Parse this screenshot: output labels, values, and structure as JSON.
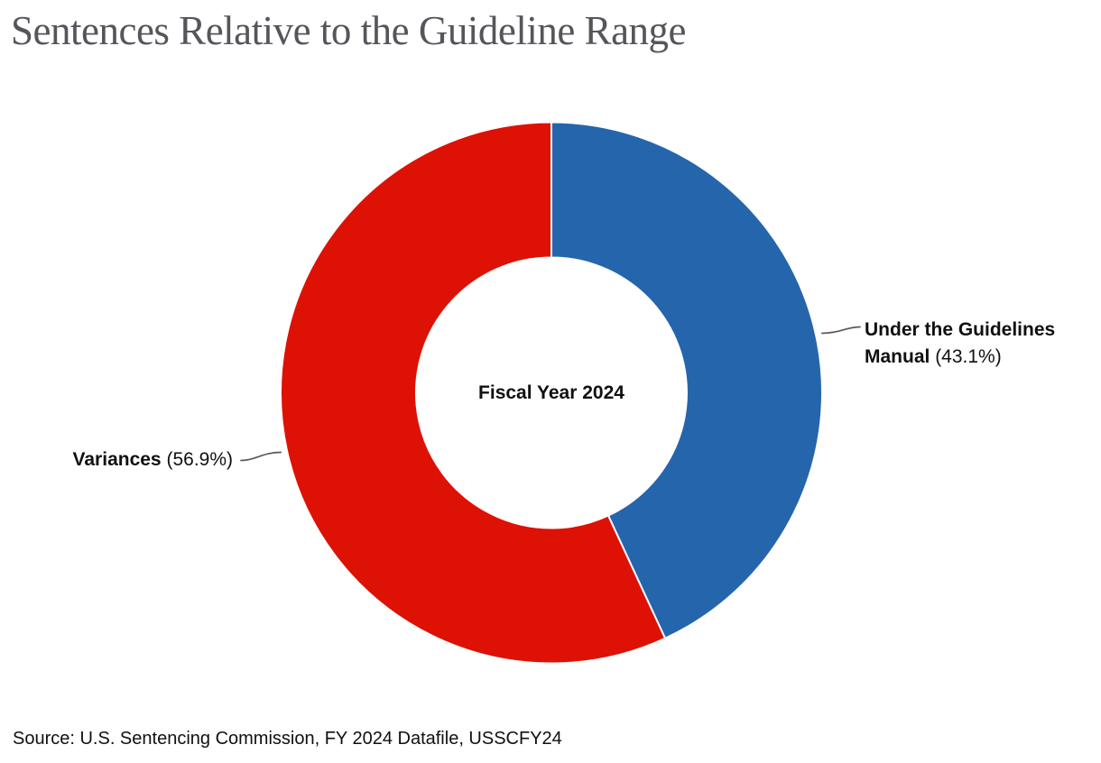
{
  "title": "Sentences Relative to the Guideline Range",
  "center_label": "Fiscal Year 2024",
  "source": "Source: U.S. Sentencing Commission, FY 2024 Datafile, USSCFY24",
  "colors": {
    "blue": "#2565ac",
    "red": "#de1105",
    "title_gray": "#55565b",
    "leader_gray": "#595a5c",
    "text_black": "#101010",
    "slice_separator": "#ffffff"
  },
  "chart_data": {
    "type": "pie",
    "subtype": "donut",
    "title": "Sentences Relative to the Guideline Range",
    "center_label": "Fiscal Year 2024",
    "start_angle_deg": 0,
    "direction": "clockwise",
    "inner_radius_ratio": 0.5,
    "legend_position": "callouts",
    "slices": [
      {
        "label": "Under the Guidelines Manual",
        "value_pct": 43.1,
        "display": "(43.1%)",
        "color": "#2565ac",
        "callout_side": "right"
      },
      {
        "label": "Variances",
        "value_pct": 56.9,
        "display": "(56.9%)",
        "color": "#de1105",
        "callout_side": "left"
      }
    ]
  }
}
